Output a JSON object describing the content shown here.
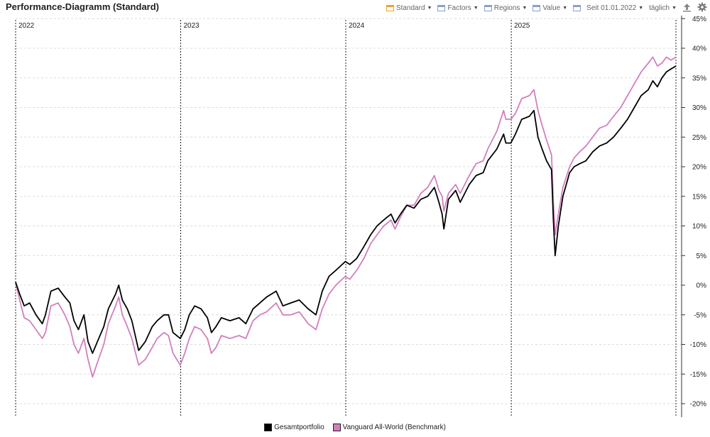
{
  "header": {
    "title": "Performance-Diagramm (Standard)"
  },
  "toolbar": {
    "standard_label": "Standard",
    "factors_label": "Factors",
    "regions_label": "Regions",
    "value_label": "Value",
    "since_label": "Seit 01.01.2022",
    "interval_label": "täglich",
    "icons": [
      "calendar-icon",
      "upload-icon",
      "gear-icon"
    ]
  },
  "colors": {
    "portfolio": "#000000",
    "benchmark": "#d27fbd",
    "standard_accent": "#f0a030",
    "grid": "#dcdcdc"
  },
  "chart_data": {
    "type": "line",
    "title": "Performance-Diagramm (Standard)",
    "x_range": [
      "2022-01-01",
      "2025-12-31"
    ],
    "year_markers": [
      "2022",
      "2023",
      "2024",
      "2025"
    ],
    "y_ticks": [
      "45%",
      "40%",
      "35%",
      "30%",
      "25%",
      "20%",
      "15%",
      "10%",
      "5%",
      "0%",
      "-5%",
      "-10%",
      "-15%",
      "-20%"
    ],
    "ylim": [
      -20,
      45
    ],
    "y_axis_position": "right",
    "grid": true,
    "legend_position": "bottom-center",
    "series": [
      {
        "name": "Gesamtportfolio",
        "points": [
          [
            "2022-01-01",
            0.5
          ],
          [
            "2022-01-10",
            -1.5
          ],
          [
            "2022-01-20",
            -3.5
          ],
          [
            "2022-02-01",
            -3
          ],
          [
            "2022-02-15",
            -5
          ],
          [
            "2022-03-01",
            -6.5
          ],
          [
            "2022-03-08",
            -5
          ],
          [
            "2022-03-20",
            -1
          ],
          [
            "2022-04-05",
            -0.5
          ],
          [
            "2022-04-20",
            -2
          ],
          [
            "2022-05-01",
            -3
          ],
          [
            "2022-05-10",
            -6
          ],
          [
            "2022-05-20",
            -7.5
          ],
          [
            "2022-06-01",
            -5
          ],
          [
            "2022-06-10",
            -9.5
          ],
          [
            "2022-06-20",
            -11.5
          ],
          [
            "2022-07-01",
            -9.5
          ],
          [
            "2022-07-15",
            -7
          ],
          [
            "2022-07-25",
            -4
          ],
          [
            "2022-08-10",
            -1.5
          ],
          [
            "2022-08-17",
            0
          ],
          [
            "2022-08-25",
            -2.5
          ],
          [
            "2022-09-05",
            -4
          ],
          [
            "2022-09-15",
            -6
          ],
          [
            "2022-09-30",
            -11
          ],
          [
            "2022-10-15",
            -9.5
          ],
          [
            "2022-10-30",
            -7
          ],
          [
            "2022-11-10",
            -6
          ],
          [
            "2022-11-25",
            -5
          ],
          [
            "2022-12-05",
            -5
          ],
          [
            "2022-12-15",
            -8
          ],
          [
            "2022-12-31",
            -9
          ],
          [
            "2023-01-10",
            -7.5
          ],
          [
            "2023-01-20",
            -5
          ],
          [
            "2023-02-01",
            -3.5
          ],
          [
            "2023-02-15",
            -4
          ],
          [
            "2023-03-01",
            -5.5
          ],
          [
            "2023-03-10",
            -8
          ],
          [
            "2023-03-20",
            -7
          ],
          [
            "2023-04-01",
            -5.5
          ],
          [
            "2023-04-20",
            -6
          ],
          [
            "2023-05-10",
            -5.5
          ],
          [
            "2023-05-25",
            -6.5
          ],
          [
            "2023-06-10",
            -4
          ],
          [
            "2023-06-25",
            -3
          ],
          [
            "2023-07-10",
            -2
          ],
          [
            "2023-07-31",
            -1
          ],
          [
            "2023-08-15",
            -3.5
          ],
          [
            "2023-09-01",
            -3
          ],
          [
            "2023-09-20",
            -2.5
          ],
          [
            "2023-10-10",
            -4
          ],
          [
            "2023-10-27",
            -5
          ],
          [
            "2023-11-10",
            -1
          ],
          [
            "2023-11-25",
            1.5
          ],
          [
            "2023-12-10",
            2.5
          ],
          [
            "2023-12-31",
            4
          ],
          [
            "2024-01-10",
            3.5
          ],
          [
            "2024-01-25",
            4.5
          ],
          [
            "2024-02-10",
            6.5
          ],
          [
            "2024-02-25",
            8.5
          ],
          [
            "2024-03-10",
            10
          ],
          [
            "2024-03-25",
            11
          ],
          [
            "2024-04-10",
            12
          ],
          [
            "2024-04-19",
            10.5
          ],
          [
            "2024-05-01",
            12
          ],
          [
            "2024-05-15",
            13.5
          ],
          [
            "2024-05-31",
            13
          ],
          [
            "2024-06-15",
            14.5
          ],
          [
            "2024-06-30",
            15
          ],
          [
            "2024-07-15",
            16.5
          ],
          [
            "2024-07-25",
            14
          ],
          [
            "2024-08-01",
            12
          ],
          [
            "2024-08-05",
            9.5
          ],
          [
            "2024-08-15",
            14.5
          ],
          [
            "2024-08-31",
            16
          ],
          [
            "2024-09-10",
            14
          ],
          [
            "2024-09-30",
            17
          ],
          [
            "2024-10-15",
            18.5
          ],
          [
            "2024-10-31",
            19
          ],
          [
            "2024-11-10",
            21
          ],
          [
            "2024-11-30",
            23
          ],
          [
            "2024-12-15",
            25.5
          ],
          [
            "2024-12-20",
            24
          ],
          [
            "2024-12-31",
            24
          ],
          [
            "2025-01-10",
            25.5
          ],
          [
            "2025-01-24",
            28
          ],
          [
            "2025-02-10",
            28.5
          ],
          [
            "2025-02-20",
            29.5
          ],
          [
            "2025-03-01",
            25
          ],
          [
            "2025-03-10",
            23
          ],
          [
            "2025-03-20",
            21
          ],
          [
            "2025-03-31",
            19.5
          ],
          [
            "2025-04-04",
            11
          ],
          [
            "2025-04-08",
            5
          ],
          [
            "2025-04-15",
            10
          ],
          [
            "2025-04-25",
            15
          ],
          [
            "2025-05-10",
            19
          ],
          [
            "2025-05-20",
            20
          ],
          [
            "2025-06-01",
            20.5
          ],
          [
            "2025-06-15",
            21
          ],
          [
            "2025-06-30",
            22.5
          ],
          [
            "2025-07-15",
            23.5
          ],
          [
            "2025-07-31",
            24
          ],
          [
            "2025-08-15",
            25
          ],
          [
            "2025-08-31",
            26.5
          ],
          [
            "2025-09-15",
            28
          ],
          [
            "2025-09-30",
            30
          ],
          [
            "2025-10-15",
            32
          ],
          [
            "2025-10-31",
            33
          ],
          [
            "2025-11-10",
            34.5
          ],
          [
            "2025-11-20",
            33.5
          ],
          [
            "2025-11-30",
            35
          ],
          [
            "2025-12-10",
            36
          ],
          [
            "2025-12-20",
            36.5
          ],
          [
            "2025-12-31",
            37
          ]
        ]
      },
      {
        "name": "Vanguard All-World (Benchmark)",
        "points": [
          [
            "2022-01-01",
            0.5
          ],
          [
            "2022-01-10",
            -2.5
          ],
          [
            "2022-01-20",
            -5.5
          ],
          [
            "2022-02-01",
            -6
          ],
          [
            "2022-02-15",
            -7.5
          ],
          [
            "2022-03-01",
            -9
          ],
          [
            "2022-03-08",
            -8
          ],
          [
            "2022-03-20",
            -3.5
          ],
          [
            "2022-04-05",
            -3
          ],
          [
            "2022-04-20",
            -5
          ],
          [
            "2022-05-01",
            -7
          ],
          [
            "2022-05-10",
            -10
          ],
          [
            "2022-05-20",
            -11.5
          ],
          [
            "2022-06-01",
            -9
          ],
          [
            "2022-06-10",
            -12.5
          ],
          [
            "2022-06-20",
            -15.5
          ],
          [
            "2022-07-01",
            -13
          ],
          [
            "2022-07-15",
            -10
          ],
          [
            "2022-07-25",
            -6.5
          ],
          [
            "2022-08-10",
            -3.5
          ],
          [
            "2022-08-17",
            -2
          ],
          [
            "2022-08-25",
            -5
          ],
          [
            "2022-09-05",
            -7
          ],
          [
            "2022-09-15",
            -9
          ],
          [
            "2022-09-30",
            -13.5
          ],
          [
            "2022-10-15",
            -12.5
          ],
          [
            "2022-10-30",
            -10.5
          ],
          [
            "2022-11-10",
            -9
          ],
          [
            "2022-11-25",
            -8
          ],
          [
            "2022-12-05",
            -8.5
          ],
          [
            "2022-12-15",
            -11.5
          ],
          [
            "2022-12-31",
            -13.5
          ],
          [
            "2023-01-10",
            -11.5
          ],
          [
            "2023-01-20",
            -9
          ],
          [
            "2023-02-01",
            -7
          ],
          [
            "2023-02-15",
            -7.5
          ],
          [
            "2023-03-01",
            -9
          ],
          [
            "2023-03-10",
            -11.5
          ],
          [
            "2023-03-20",
            -10.5
          ],
          [
            "2023-04-01",
            -8.5
          ],
          [
            "2023-04-20",
            -9
          ],
          [
            "2023-05-10",
            -8.5
          ],
          [
            "2023-05-25",
            -9
          ],
          [
            "2023-06-10",
            -6
          ],
          [
            "2023-06-25",
            -5
          ],
          [
            "2023-07-10",
            -4.5
          ],
          [
            "2023-07-31",
            -3
          ],
          [
            "2023-08-15",
            -5
          ],
          [
            "2023-09-01",
            -5
          ],
          [
            "2023-09-20",
            -4.5
          ],
          [
            "2023-10-10",
            -6.5
          ],
          [
            "2023-10-27",
            -7.5
          ],
          [
            "2023-11-10",
            -4
          ],
          [
            "2023-11-25",
            -1.5
          ],
          [
            "2023-12-10",
            0
          ],
          [
            "2023-12-31",
            1.5
          ],
          [
            "2024-01-10",
            1
          ],
          [
            "2024-01-25",
            2.5
          ],
          [
            "2024-02-10",
            4.5
          ],
          [
            "2024-02-25",
            7
          ],
          [
            "2024-03-10",
            8.5
          ],
          [
            "2024-03-25",
            10
          ],
          [
            "2024-04-10",
            11
          ],
          [
            "2024-04-19",
            9.5
          ],
          [
            "2024-05-01",
            11.5
          ],
          [
            "2024-05-15",
            13.5
          ],
          [
            "2024-05-31",
            13.5
          ],
          [
            "2024-06-15",
            15.5
          ],
          [
            "2024-06-30",
            16.5
          ],
          [
            "2024-07-15",
            18.5
          ],
          [
            "2024-07-25",
            16
          ],
          [
            "2024-08-01",
            15
          ],
          [
            "2024-08-05",
            12.5
          ],
          [
            "2024-08-15",
            15.5
          ],
          [
            "2024-08-31",
            17
          ],
          [
            "2024-09-10",
            15.5
          ],
          [
            "2024-09-30",
            18.5
          ],
          [
            "2024-10-15",
            20.5
          ],
          [
            "2024-10-31",
            21
          ],
          [
            "2024-11-10",
            23
          ],
          [
            "2024-11-30",
            26
          ],
          [
            "2024-12-15",
            29.5
          ],
          [
            "2024-12-20",
            28
          ],
          [
            "2024-12-31",
            28
          ],
          [
            "2025-01-10",
            29
          ],
          [
            "2025-01-24",
            31.5
          ],
          [
            "2025-02-10",
            32
          ],
          [
            "2025-02-20",
            33
          ],
          [
            "2025-03-01",
            29.5
          ],
          [
            "2025-03-10",
            27
          ],
          [
            "2025-03-20",
            24.5
          ],
          [
            "2025-03-31",
            22
          ],
          [
            "2025-04-04",
            14
          ],
          [
            "2025-04-08",
            8.5
          ],
          [
            "2025-04-15",
            12
          ],
          [
            "2025-04-25",
            16.5
          ],
          [
            "2025-05-10",
            20
          ],
          [
            "2025-05-20",
            21.5
          ],
          [
            "2025-06-01",
            22.5
          ],
          [
            "2025-06-15",
            23.5
          ],
          [
            "2025-06-30",
            25
          ],
          [
            "2025-07-15",
            26.5
          ],
          [
            "2025-07-31",
            27
          ],
          [
            "2025-08-15",
            28.5
          ],
          [
            "2025-08-31",
            30
          ],
          [
            "2025-09-15",
            32
          ],
          [
            "2025-09-30",
            34
          ],
          [
            "2025-10-15",
            36
          ],
          [
            "2025-10-31",
            37.5
          ],
          [
            "2025-11-10",
            38.5
          ],
          [
            "2025-11-20",
            37
          ],
          [
            "2025-11-30",
            37.5
          ],
          [
            "2025-12-10",
            38.5
          ],
          [
            "2025-12-20",
            38
          ],
          [
            "2025-12-31",
            38.5
          ]
        ]
      }
    ]
  }
}
